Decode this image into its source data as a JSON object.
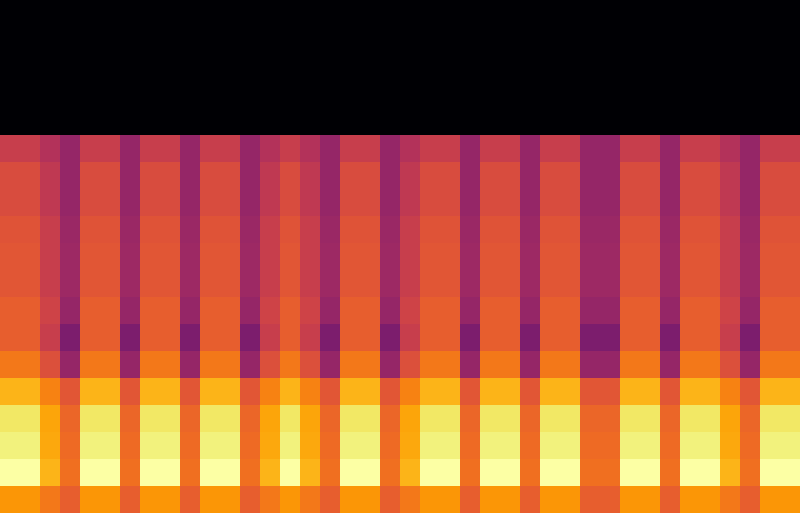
{
  "chart_data": {
    "type": "heatmap",
    "tick_labels": false,
    "cells": [
      [
        0,
        0,
        0,
        0,
        0,
        0,
        0,
        0,
        0,
        0,
        0,
        0,
        0,
        0,
        0,
        0,
        0,
        0,
        0,
        0,
        0,
        0,
        0,
        0,
        0,
        0,
        0,
        0,
        0,
        0,
        0,
        0,
        0,
        0,
        0,
        0,
        0,
        0,
        0,
        0
      ],
      [
        0,
        0,
        0,
        0,
        0,
        0,
        0,
        0,
        0,
        0,
        0,
        0,
        0,
        0,
        0,
        0,
        0,
        0,
        0,
        0,
        0,
        0,
        0,
        0,
        0,
        0,
        0,
        0,
        0,
        0,
        0,
        0,
        0,
        0,
        0,
        0,
        0,
        0,
        0,
        0
      ],
      [
        0,
        0,
        0,
        0,
        0,
        0,
        0,
        0,
        0,
        0,
        0,
        0,
        0,
        0,
        0,
        0,
        0,
        0,
        0,
        0,
        0,
        0,
        0,
        0,
        0,
        0,
        0,
        0,
        0,
        0,
        0,
        0,
        0,
        0,
        0,
        0,
        0,
        0,
        0,
        0
      ],
      [
        0,
        0,
        0,
        0,
        0,
        0,
        0,
        0,
        0,
        0,
        0,
        0,
        0,
        0,
        0,
        0,
        0,
        0,
        0,
        0,
        0,
        0,
        0,
        0,
        0,
        0,
        0,
        0,
        0,
        0,
        0,
        0,
        0,
        0,
        0,
        0,
        0,
        0,
        0,
        0
      ],
      [
        0,
        0,
        0,
        0,
        0,
        0,
        0,
        0,
        0,
        0,
        0,
        0,
        0,
        0,
        0,
        0,
        0,
        0,
        0,
        0,
        0,
        0,
        0,
        0,
        0,
        0,
        0,
        0,
        0,
        0,
        0,
        0,
        0,
        0,
        0,
        0,
        0,
        0,
        0,
        0
      ],
      [
        50,
        50,
        45,
        38,
        50,
        50,
        38,
        50,
        50,
        38,
        50,
        50,
        38,
        45,
        50,
        45,
        38,
        50,
        50,
        38,
        45,
        50,
        50,
        38,
        50,
        50,
        38,
        50,
        50,
        38,
        38,
        50,
        50,
        38,
        50,
        50,
        45,
        38,
        50,
        50
      ],
      [
        55,
        55,
        48,
        38,
        55,
        55,
        38,
        55,
        55,
        38,
        55,
        55,
        38,
        48,
        55,
        48,
        38,
        55,
        55,
        38,
        48,
        55,
        55,
        38,
        55,
        55,
        38,
        55,
        55,
        38,
        38,
        55,
        55,
        38,
        55,
        55,
        48,
        38,
        55,
        55
      ],
      [
        55,
        55,
        48,
        38,
        55,
        55,
        38,
        55,
        55,
        38,
        55,
        55,
        38,
        48,
        55,
        48,
        38,
        55,
        55,
        38,
        48,
        55,
        55,
        38,
        55,
        55,
        38,
        55,
        55,
        38,
        38,
        55,
        55,
        38,
        55,
        55,
        48,
        38,
        55,
        55
      ],
      [
        57,
        57,
        50,
        39,
        57,
        57,
        39,
        57,
        57,
        39,
        57,
        57,
        39,
        50,
        57,
        50,
        39,
        57,
        57,
        39,
        50,
        57,
        57,
        39,
        57,
        57,
        39,
        57,
        57,
        39,
        39,
        57,
        57,
        39,
        57,
        57,
        50,
        39,
        57,
        57
      ],
      [
        58,
        58,
        50,
        40,
        58,
        58,
        40,
        58,
        58,
        40,
        58,
        58,
        40,
        50,
        58,
        50,
        40,
        58,
        58,
        40,
        50,
        58,
        58,
        40,
        58,
        58,
        40,
        58,
        58,
        40,
        40,
        58,
        58,
        40,
        58,
        58,
        50,
        40,
        58,
        58
      ],
      [
        58,
        58,
        50,
        40,
        58,
        58,
        40,
        58,
        58,
        40,
        58,
        58,
        40,
        50,
        58,
        50,
        40,
        58,
        58,
        40,
        50,
        58,
        58,
        40,
        58,
        58,
        40,
        58,
        58,
        40,
        40,
        58,
        58,
        40,
        58,
        58,
        50,
        40,
        58,
        58
      ],
      [
        60,
        60,
        52,
        38,
        60,
        60,
        38,
        60,
        60,
        38,
        60,
        60,
        38,
        52,
        60,
        52,
        38,
        60,
        60,
        38,
        52,
        60,
        60,
        38,
        60,
        60,
        38,
        60,
        60,
        38,
        38,
        60,
        60,
        38,
        60,
        60,
        52,
        38,
        60,
        60
      ],
      [
        60,
        60,
        50,
        32,
        60,
        60,
        32,
        60,
        60,
        32,
        60,
        60,
        32,
        50,
        60,
        50,
        32,
        60,
        60,
        32,
        50,
        60,
        60,
        32,
        60,
        60,
        32,
        60,
        60,
        32,
        32,
        60,
        60,
        32,
        60,
        60,
        50,
        32,
        60,
        60
      ],
      [
        66,
        66,
        56,
        38,
        66,
        66,
        38,
        66,
        66,
        38,
        66,
        66,
        38,
        56,
        66,
        56,
        38,
        66,
        66,
        38,
        56,
        66,
        66,
        38,
        66,
        66,
        38,
        66,
        66,
        38,
        38,
        66,
        66,
        38,
        66,
        66,
        56,
        38,
        66,
        66
      ],
      [
        78,
        78,
        68,
        58,
        78,
        78,
        58,
        78,
        78,
        58,
        78,
        78,
        58,
        68,
        78,
        68,
        58,
        78,
        78,
        58,
        68,
        78,
        78,
        58,
        78,
        78,
        58,
        78,
        78,
        58,
        58,
        78,
        78,
        58,
        78,
        78,
        68,
        58,
        78,
        78
      ],
      [
        88,
        88,
        75,
        62,
        88,
        88,
        62,
        88,
        88,
        62,
        88,
        88,
        62,
        75,
        88,
        75,
        62,
        88,
        88,
        62,
        75,
        88,
        88,
        62,
        88,
        88,
        62,
        88,
        88,
        62,
        62,
        88,
        88,
        62,
        88,
        88,
        75,
        62,
        88,
        88
      ],
      [
        90,
        90,
        76,
        63,
        90,
        90,
        63,
        90,
        90,
        63,
        90,
        90,
        63,
        76,
        90,
        76,
        63,
        90,
        90,
        63,
        76,
        90,
        90,
        63,
        90,
        90,
        63,
        90,
        90,
        63,
        63,
        90,
        90,
        63,
        90,
        90,
        76,
        63,
        90,
        90
      ],
      [
        94,
        94,
        78,
        64,
        94,
        94,
        64,
        94,
        94,
        64,
        94,
        94,
        64,
        78,
        94,
        78,
        64,
        94,
        94,
        64,
        78,
        94,
        94,
        64,
        94,
        94,
        64,
        94,
        94,
        64,
        64,
        94,
        94,
        64,
        94,
        94,
        78,
        64,
        94,
        94
      ],
      [
        72,
        72,
        66,
        60,
        72,
        72,
        60,
        72,
        72,
        60,
        72,
        72,
        60,
        66,
        72,
        66,
        60,
        72,
        72,
        60,
        66,
        72,
        72,
        60,
        72,
        72,
        60,
        72,
        72,
        60,
        60,
        72,
        72,
        60,
        72,
        72,
        66,
        60,
        72,
        72
      ]
    ]
  }
}
